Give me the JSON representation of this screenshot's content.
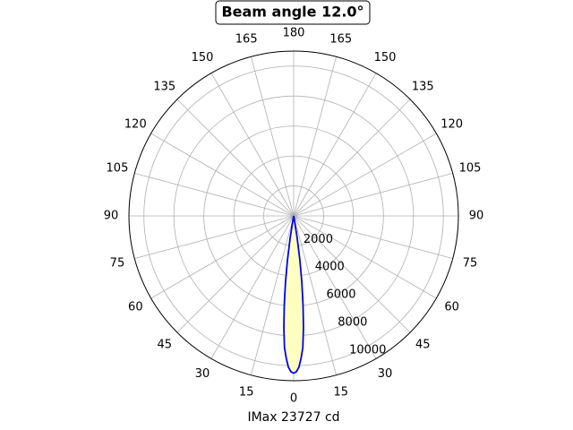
{
  "chart_data": {
    "type": "polar",
    "title": "Beam angle 12.0°",
    "xlabel": "IMax 23727 cd",
    "theta": [
      -11,
      -10,
      -9,
      -8,
      -7,
      -6,
      -5,
      -4,
      -3,
      -2,
      -1,
      0,
      1,
      2,
      3,
      4,
      5,
      6,
      7,
      8,
      9,
      10,
      11
    ],
    "series": [
      {
        "color": "#0000ee",
        "fill": "#ffffc0",
        "values": [
          0,
          300,
          1500,
          3000,
          4500,
          6000,
          7500,
          8800,
          9500,
          10100,
          10400,
          10500,
          10400,
          10100,
          9500,
          8800,
          7500,
          6000,
          4500,
          3000,
          1500,
          300,
          0
        ]
      }
    ],
    "rlim": [
      0,
      11000
    ],
    "rticks": [
      2000,
      4000,
      6000,
      8000,
      10000
    ],
    "thetaticks": [
      0,
      15,
      30,
      45,
      60,
      75,
      90,
      105,
      120,
      135,
      150,
      165,
      180
    ],
    "grid": true
  }
}
